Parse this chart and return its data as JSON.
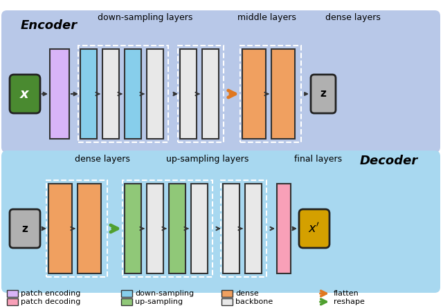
{
  "bg_encoder": "#b8c8e8",
  "bg_decoder": "#a8d8f0",
  "color_patch_enc": "#d8b4f8",
  "color_patch_dec": "#f8a0b8",
  "color_downsample": "#87ceeb",
  "color_upsample": "#90c878",
  "color_dense": "#f0a060",
  "color_backbone": "#e8e8e8",
  "color_input_x": "#4a8a30",
  "color_output_x": "#d4a000",
  "color_z": "#b0b0b0",
  "color_flatten_arrow": "#e07820",
  "color_reshape_arrow": "#50a030",
  "encoder_title": "Encoder",
  "decoder_title": "Decoder",
  "label_down_sampling": "down-sampling layers",
  "label_middle": "middle layers",
  "label_dense_enc": "dense layers",
  "label_dense_dec": "dense layers",
  "label_upsampling": "up-sampling layers",
  "label_final": "final layers",
  "legend_patch_enc": "patch encoding",
  "legend_patch_dec": "patch decoding",
  "legend_downsample": "down-sampling",
  "legend_upsample": "up-sampling",
  "legend_dense": "dense",
  "legend_backbone": "backbone",
  "legend_flatten": "flatten",
  "legend_reshape": "reshape"
}
